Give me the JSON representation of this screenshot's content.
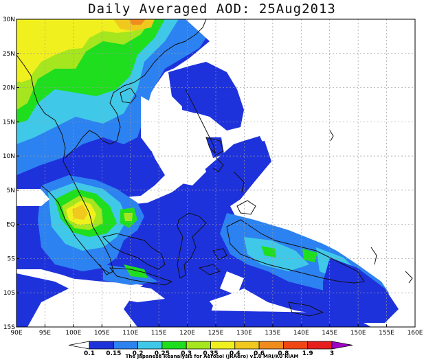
{
  "title": "Daily Averaged AOD: 25Aug2013",
  "credit": "The Japanese Reanalysis for Aerosol (JRAero) v1.0 MRI/KU RIAM",
  "x_axis": {
    "labels": [
      "90E",
      "95E",
      "100E",
      "105E",
      "110E",
      "115E",
      "120E",
      "125E",
      "130E",
      "135E",
      "140E",
      "145E",
      "150E",
      "155E",
      "160E"
    ],
    "values": [
      90,
      95,
      100,
      105,
      110,
      115,
      120,
      125,
      130,
      135,
      140,
      145,
      150,
      155,
      160
    ]
  },
  "y_axis": {
    "labels": [
      "30N",
      "25N",
      "20N",
      "15N",
      "10N",
      "5N",
      "EQ",
      "5S",
      "10S",
      "15S"
    ],
    "values": [
      30,
      25,
      20,
      15,
      10,
      5,
      0,
      -5,
      -10,
      -15
    ]
  },
  "colorbar": {
    "labels": [
      "0.1",
      "0.15",
      "0.2",
      "0.25",
      "0.3",
      "0.35",
      "0.4",
      "0.6",
      "0.8",
      "1.9",
      "3"
    ],
    "colors": [
      "#ffffff",
      "#1e32dc",
      "#2c82f0",
      "#40c8e8",
      "#1ede1e",
      "#a6e61e",
      "#f0f01e",
      "#f0c81e",
      "#f08c1e",
      "#f04614",
      "#e61e1e",
      "#a000c8"
    ]
  },
  "fills": {
    "c1": "#1e32dc",
    "c2": "#2c82f0",
    "c3": "#40c8e8",
    "c4": "#1ede1e",
    "c5": "#a6e61e",
    "c6": "#f0f01e",
    "c7": "#f0c81e",
    "c8": "#f08c1e"
  }
}
